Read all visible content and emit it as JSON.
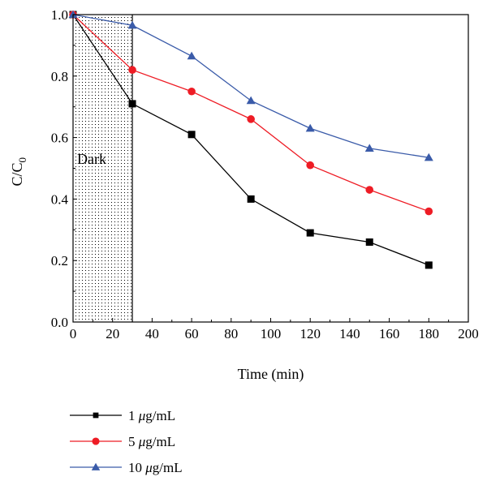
{
  "chart_data": {
    "type": "line",
    "xlabel": "Time (min)",
    "ylabel": "C/C0",
    "ylabel_main": "C/C",
    "ylabel_sub": "0",
    "xlim": [
      0,
      200
    ],
    "ylim": [
      0,
      1.0
    ],
    "xticks": [
      0,
      20,
      40,
      60,
      80,
      100,
      120,
      140,
      160,
      180,
      200
    ],
    "yticks": [
      0.0,
      0.2,
      0.4,
      0.6,
      0.8,
      1.0
    ],
    "xtick_labels": [
      "0",
      "20",
      "40",
      "60",
      "80",
      "100",
      "120",
      "140",
      "160",
      "180",
      "200"
    ],
    "ytick_labels": [
      "0.0",
      "0.2",
      "0.4",
      "0.6",
      "0.8",
      "1.0"
    ],
    "dark_region": {
      "label": "Dark",
      "x_start": 0,
      "x_end": 30
    },
    "x": [
      0,
      30,
      60,
      90,
      120,
      150,
      180
    ],
    "series": [
      {
        "name": "1 μg/mL",
        "prefix": "1 ",
        "unit_mu": "μ",
        "unit_rest": "g/mL",
        "color": "#000000",
        "marker": "square",
        "values": [
          1.0,
          0.71,
          0.61,
          0.4,
          0.29,
          0.26,
          0.185
        ]
      },
      {
        "name": "5 μg/mL",
        "prefix": "5 ",
        "unit_mu": "μ",
        "unit_rest": "g/mL",
        "color": "#ee1c25",
        "marker": "circle",
        "values": [
          1.0,
          0.82,
          0.75,
          0.66,
          0.51,
          0.43,
          0.36
        ]
      },
      {
        "name": "10 μg/mL",
        "prefix": "10 ",
        "unit_mu": "μ",
        "unit_rest": "g/mL",
        "color": "#3a5ba9",
        "marker": "triangle",
        "values": [
          1.0,
          0.965,
          0.865,
          0.72,
          0.63,
          0.565,
          0.535
        ]
      }
    ],
    "grid": false,
    "legend_position": "bottom-left"
  }
}
